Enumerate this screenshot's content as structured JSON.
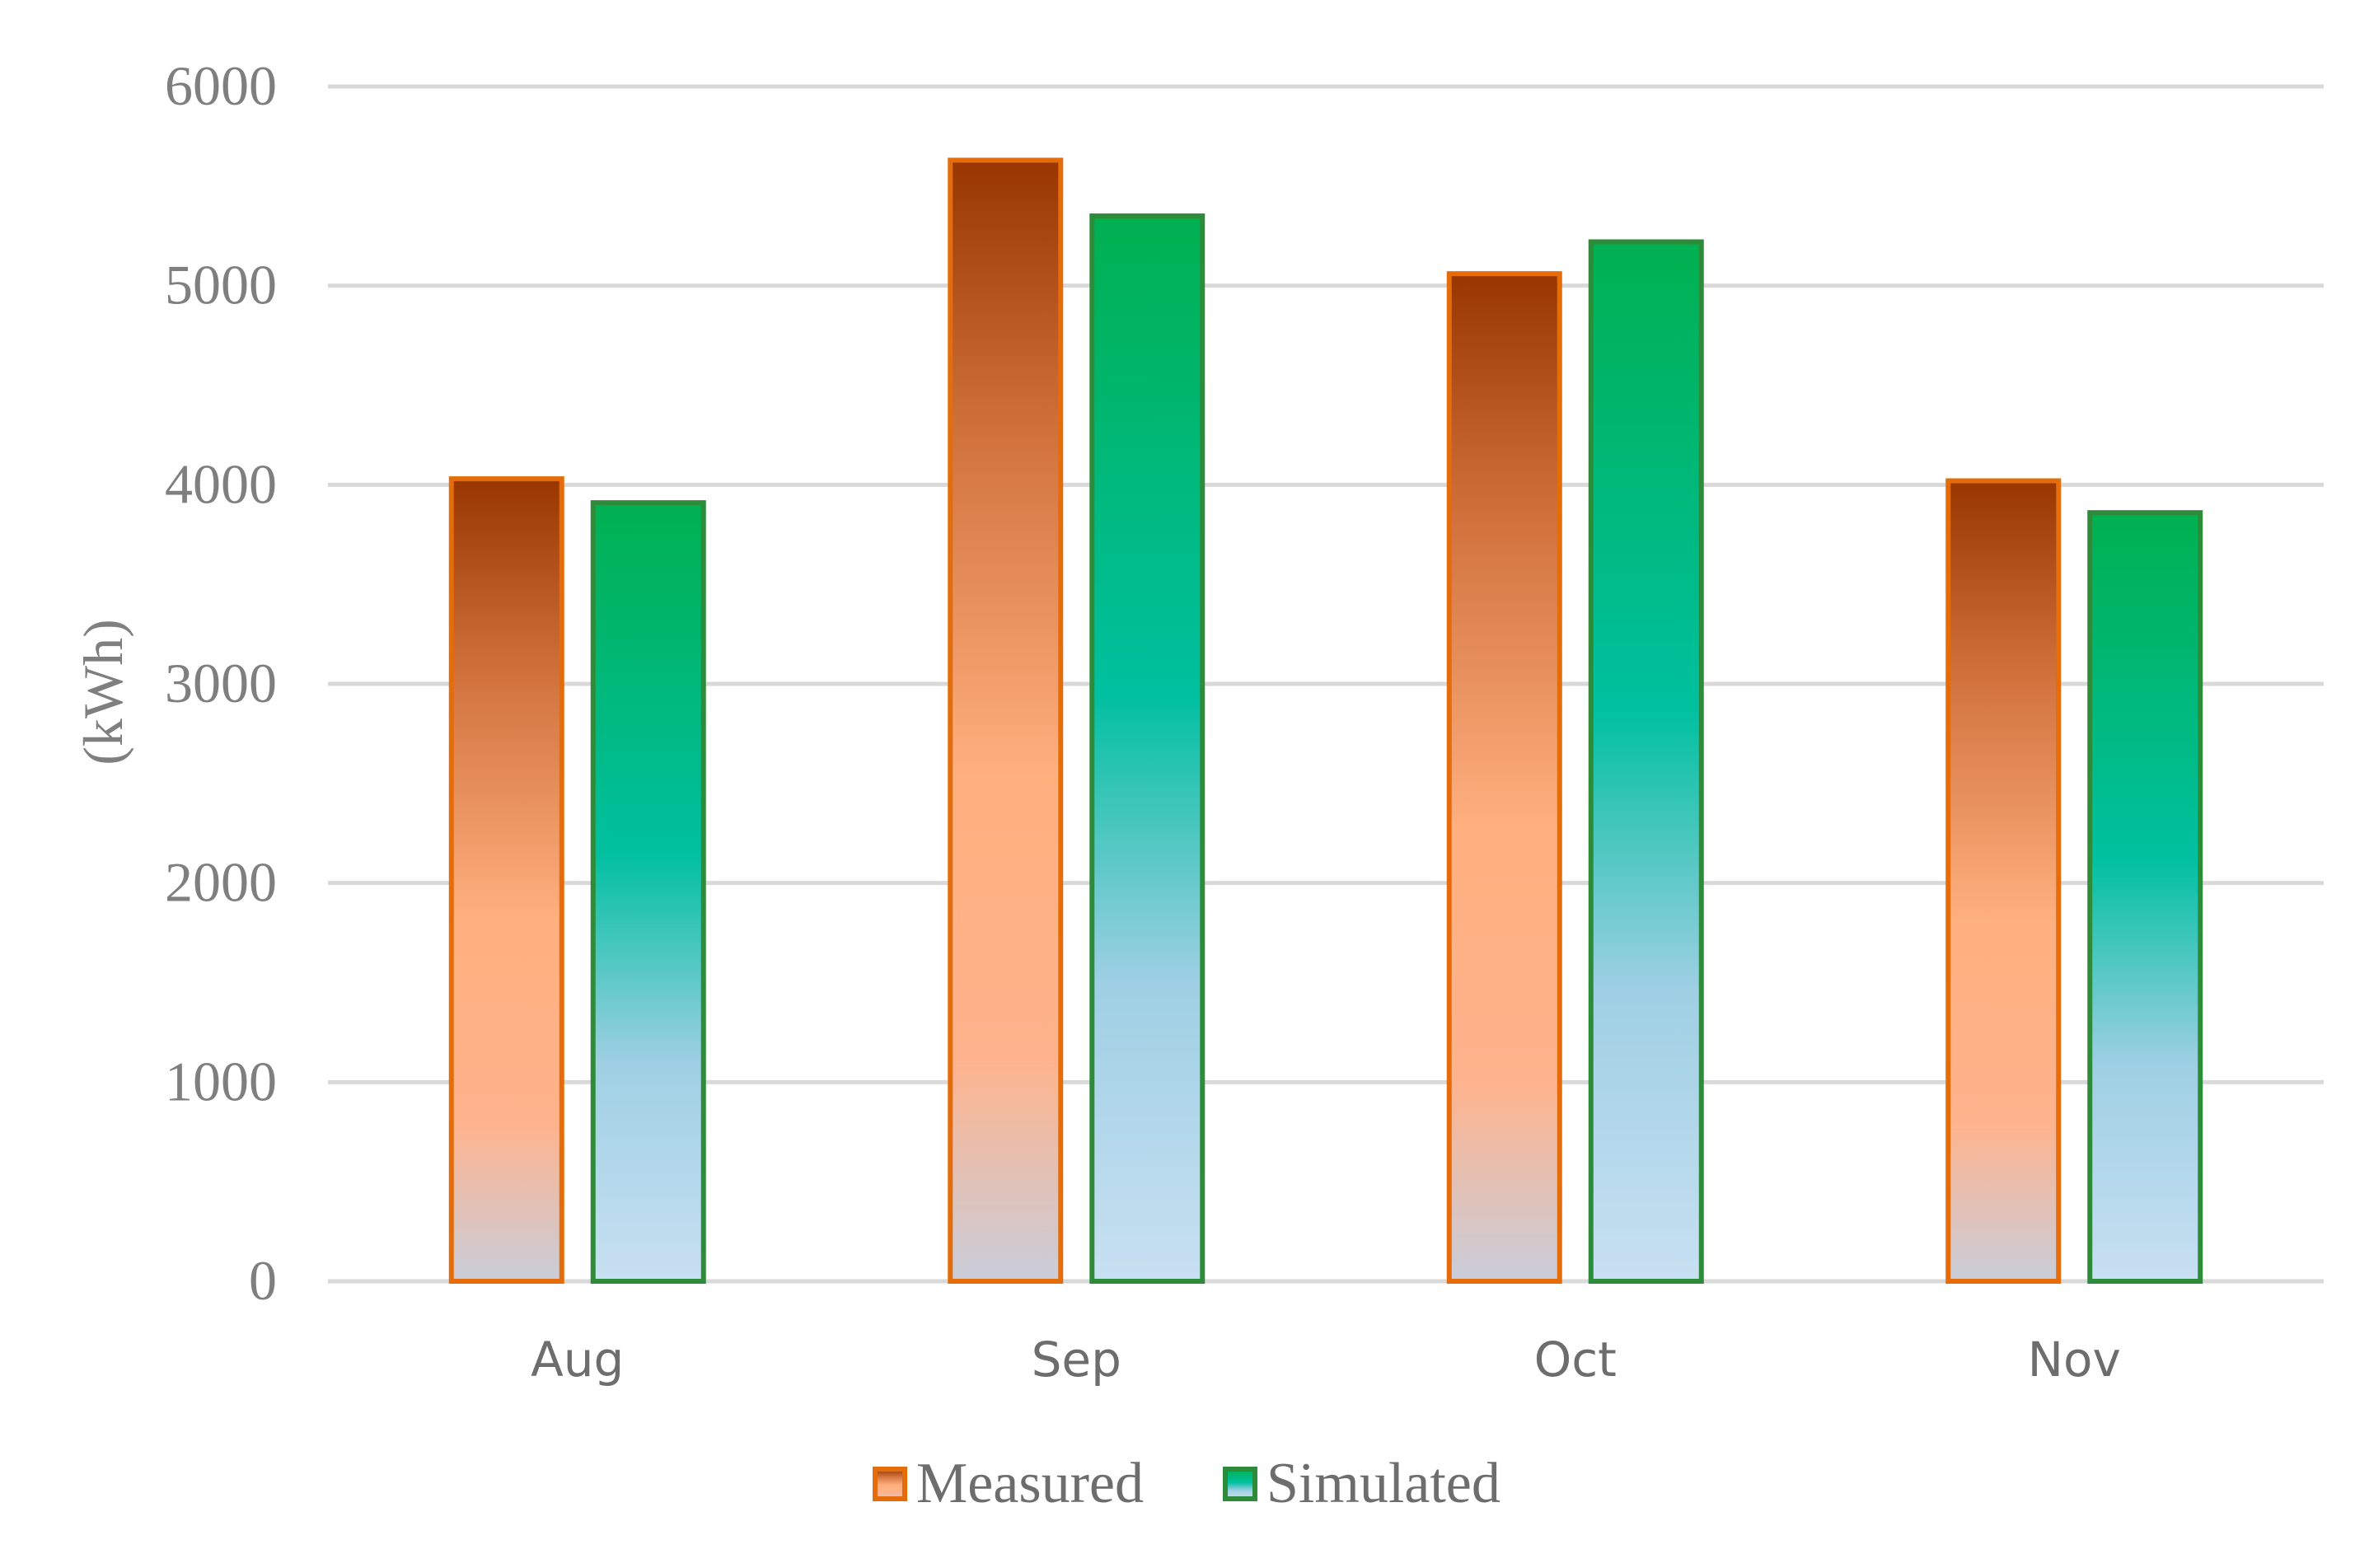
{
  "chart_data": {
    "type": "bar",
    "categories": [
      "Aug",
      "Sep",
      "Oct",
      "Nov"
    ],
    "series": [
      {
        "name": "Measured",
        "values": [
          4030,
          5630,
          5060,
          4020
        ],
        "color": "#e46c0a"
      },
      {
        "name": "Simulated",
        "values": [
          3910,
          5350,
          5220,
          3860
        ],
        "color": "#2e8b3a"
      }
    ],
    "ylabel": "(kWh)",
    "xlabel": "",
    "ylim": [
      0,
      6000
    ],
    "yticks": [
      "0",
      "1000",
      "2000",
      "3000",
      "4000",
      "5000",
      "6000"
    ],
    "grid": true,
    "legend_position": "bottom"
  }
}
